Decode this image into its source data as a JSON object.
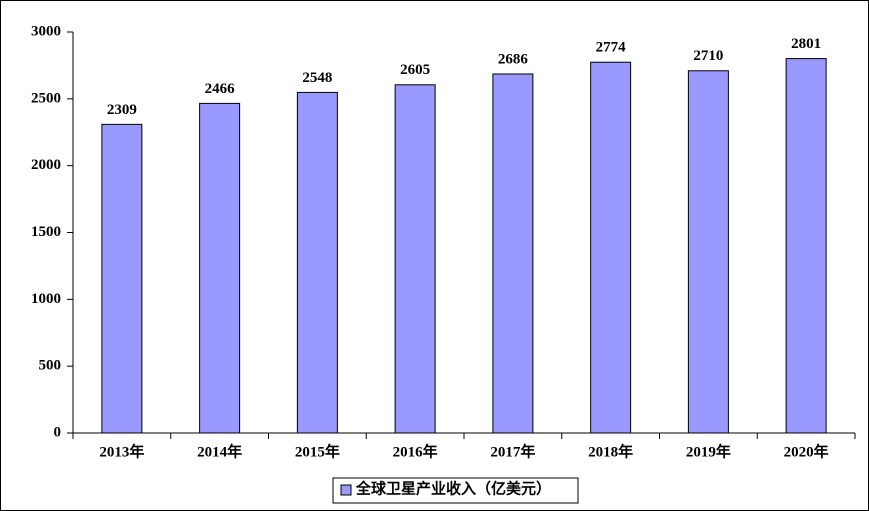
{
  "chart_data": {
    "type": "bar",
    "categories": [
      "2013年",
      "2014年",
      "2015年",
      "2016年",
      "2017年",
      "2018年",
      "2019年",
      "2020年"
    ],
    "series": [
      {
        "name": "全球卫星产业收入（亿美元）",
        "color": "#9999ff",
        "values": [
          2309,
          2466,
          2548,
          2605,
          2686,
          2774,
          2710,
          2801
        ]
      }
    ],
    "ylim": [
      0,
      3000
    ],
    "yticks": [
      0,
      500,
      1000,
      1500,
      2000,
      2500,
      3000
    ],
    "grid": false,
    "legend": "bottom"
  }
}
